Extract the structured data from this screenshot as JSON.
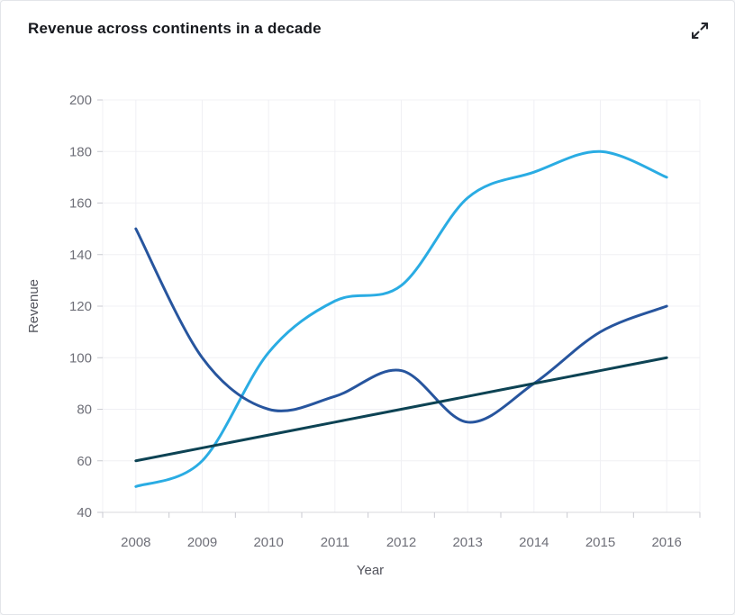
{
  "header": {
    "title": "Revenue across continents in a decade",
    "expand_button": {
      "icon": "expand-diagonal-arrows",
      "label": "Expand"
    }
  },
  "chart_data": {
    "type": "line",
    "smooth": true,
    "title": "Revenue across continents in a decade",
    "xlabel": "Year",
    "ylabel": "Revenue",
    "categories": [
      "2008",
      "2009",
      "2010",
      "2011",
      "2012",
      "2013",
      "2014",
      "2015",
      "2016"
    ],
    "ylim": [
      40,
      200
    ],
    "ytick_step": 20,
    "grid": true,
    "legend": "none",
    "series": [
      {
        "name": "light-blue-series",
        "color": "#2AACE3",
        "values": [
          50,
          60,
          102,
          122,
          128,
          162,
          172,
          180,
          170
        ]
      },
      {
        "name": "dark-blue-series",
        "color": "#27559E",
        "values": [
          150,
          100,
          80,
          85,
          95,
          75,
          90,
          110,
          120
        ]
      },
      {
        "name": "dark-teal-series",
        "color": "#0D4354",
        "values": [
          60,
          65,
          70,
          75,
          80,
          85,
          90,
          95,
          100
        ]
      }
    ]
  },
  "colors": {
    "card_bg": "#ffffff",
    "card_border": "#e3e5e9",
    "title": "#17191e",
    "tick_label": "#6e6f78",
    "axis_name": "#53545d",
    "grid_line": "#f0f0f4",
    "axis_line": "#d9dade",
    "tick_mark": "#c9cad0",
    "icon": "#24262c"
  }
}
